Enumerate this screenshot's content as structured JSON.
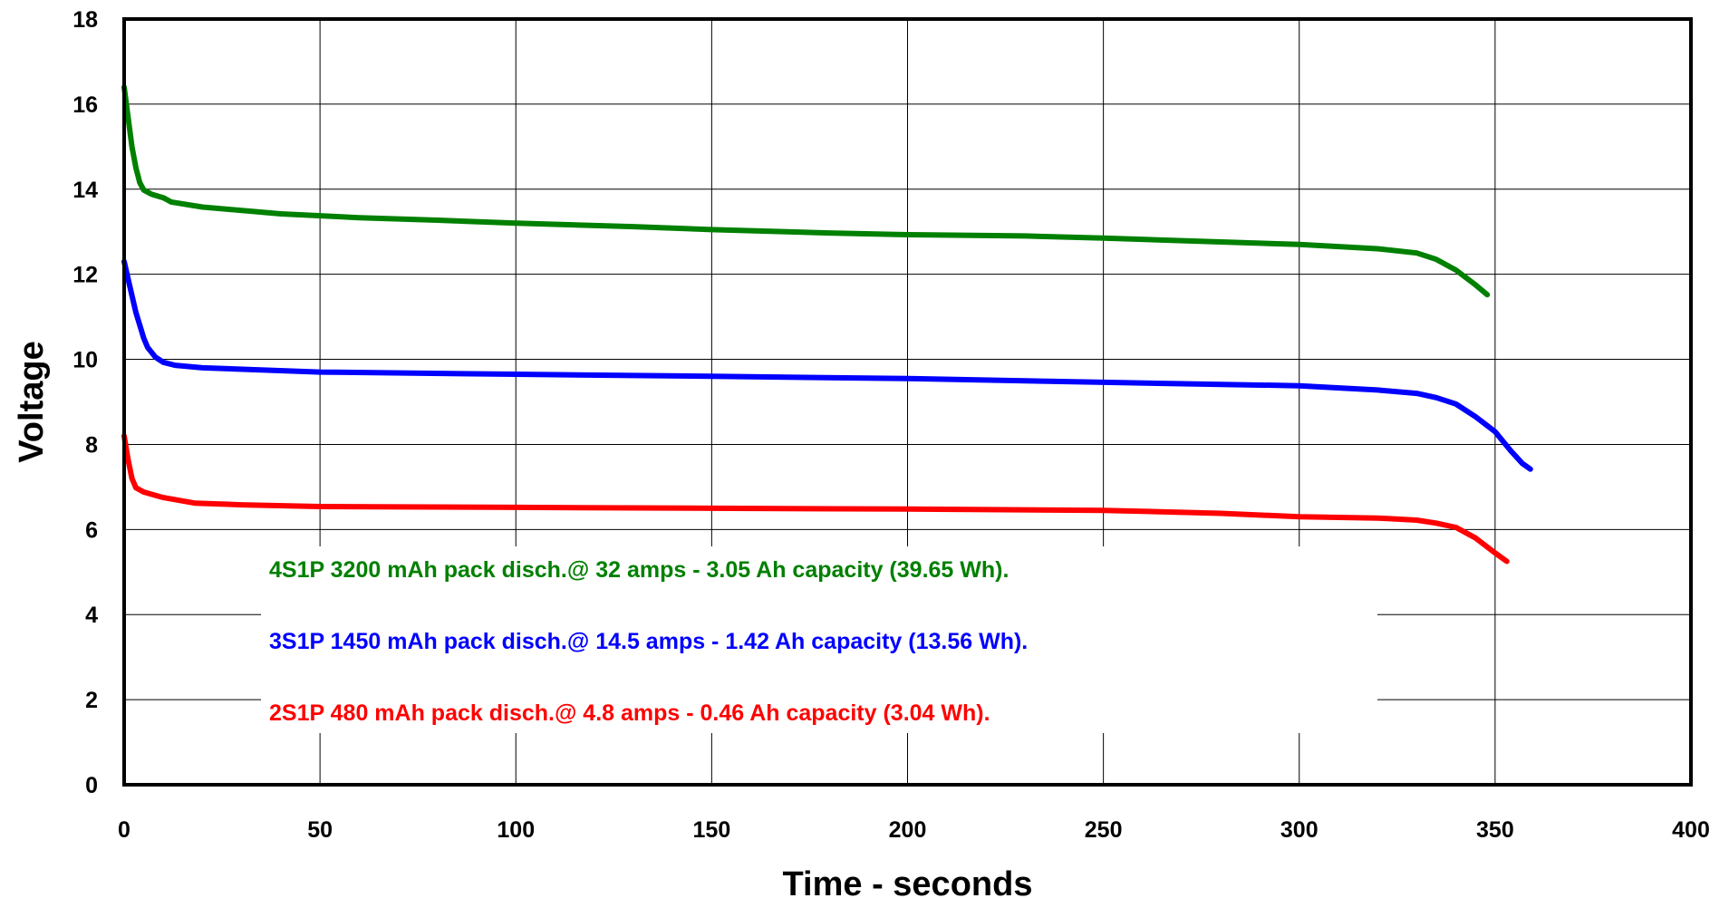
{
  "chart_data": {
    "type": "line",
    "xlabel": "Time - seconds",
    "ylabel": "Voltage",
    "xlim": [
      0,
      400
    ],
    "ylim": [
      0,
      18
    ],
    "xticks": [
      0,
      50,
      100,
      150,
      200,
      250,
      300,
      350,
      400
    ],
    "yticks": [
      0,
      2,
      4,
      6,
      8,
      10,
      12,
      14,
      16,
      18
    ],
    "grid": true,
    "legend": "none",
    "colors": {
      "green": "#008000",
      "blue": "#0000ff",
      "red": "#ff0000"
    },
    "series": [
      {
        "color": "#008000",
        "annotation": "4S1P 3200 mAh pack disch.@ 32 amps - 3.05 Ah capacity (39.65 Wh).",
        "points": [
          [
            0,
            16.4
          ],
          [
            1,
            15.7
          ],
          [
            2,
            15.0
          ],
          [
            3,
            14.5
          ],
          [
            4,
            14.15
          ],
          [
            5,
            13.98
          ],
          [
            7,
            13.88
          ],
          [
            10,
            13.8
          ],
          [
            12,
            13.7
          ],
          [
            20,
            13.58
          ],
          [
            40,
            13.42
          ],
          [
            60,
            13.33
          ],
          [
            80,
            13.27
          ],
          [
            100,
            13.2
          ],
          [
            130,
            13.12
          ],
          [
            150,
            13.05
          ],
          [
            180,
            12.97
          ],
          [
            200,
            12.93
          ],
          [
            230,
            12.9
          ],
          [
            250,
            12.85
          ],
          [
            280,
            12.76
          ],
          [
            300,
            12.7
          ],
          [
            320,
            12.6
          ],
          [
            330,
            12.5
          ],
          [
            335,
            12.35
          ],
          [
            340,
            12.1
          ],
          [
            345,
            11.75
          ],
          [
            348,
            11.52
          ]
        ]
      },
      {
        "color": "#0000ff",
        "annotation": "3S1P 1450 mAh pack disch.@ 14.5 amps - 1.42 Ah capacity (13.56 Wh).",
        "points": [
          [
            0,
            12.3
          ],
          [
            1,
            11.9
          ],
          [
            2,
            11.5
          ],
          [
            3,
            11.1
          ],
          [
            4,
            10.8
          ],
          [
            5,
            10.5
          ],
          [
            6,
            10.28
          ],
          [
            8,
            10.05
          ],
          [
            10,
            9.93
          ],
          [
            13,
            9.86
          ],
          [
            20,
            9.8
          ],
          [
            50,
            9.7
          ],
          [
            100,
            9.65
          ],
          [
            150,
            9.6
          ],
          [
            200,
            9.55
          ],
          [
            250,
            9.46
          ],
          [
            300,
            9.38
          ],
          [
            320,
            9.28
          ],
          [
            330,
            9.2
          ],
          [
            335,
            9.1
          ],
          [
            340,
            8.95
          ],
          [
            345,
            8.65
          ],
          [
            350,
            8.3
          ],
          [
            354,
            7.85
          ],
          [
            357,
            7.55
          ],
          [
            359,
            7.42
          ]
        ]
      },
      {
        "color": "#ff0000",
        "annotation": "2S1P 480 mAh pack disch.@ 4.8 amps - 0.46 Ah capacity (3.04 Wh).",
        "points": [
          [
            0,
            8.2
          ],
          [
            1,
            7.65
          ],
          [
            2,
            7.2
          ],
          [
            3,
            6.98
          ],
          [
            5,
            6.88
          ],
          [
            10,
            6.75
          ],
          [
            18,
            6.62
          ],
          [
            30,
            6.58
          ],
          [
            50,
            6.54
          ],
          [
            100,
            6.52
          ],
          [
            150,
            6.5
          ],
          [
            200,
            6.48
          ],
          [
            250,
            6.45
          ],
          [
            280,
            6.38
          ],
          [
            300,
            6.3
          ],
          [
            320,
            6.27
          ],
          [
            330,
            6.22
          ],
          [
            335,
            6.15
          ],
          [
            340,
            6.05
          ],
          [
            345,
            5.8
          ],
          [
            350,
            5.45
          ],
          [
            353,
            5.25
          ]
        ]
      }
    ]
  }
}
